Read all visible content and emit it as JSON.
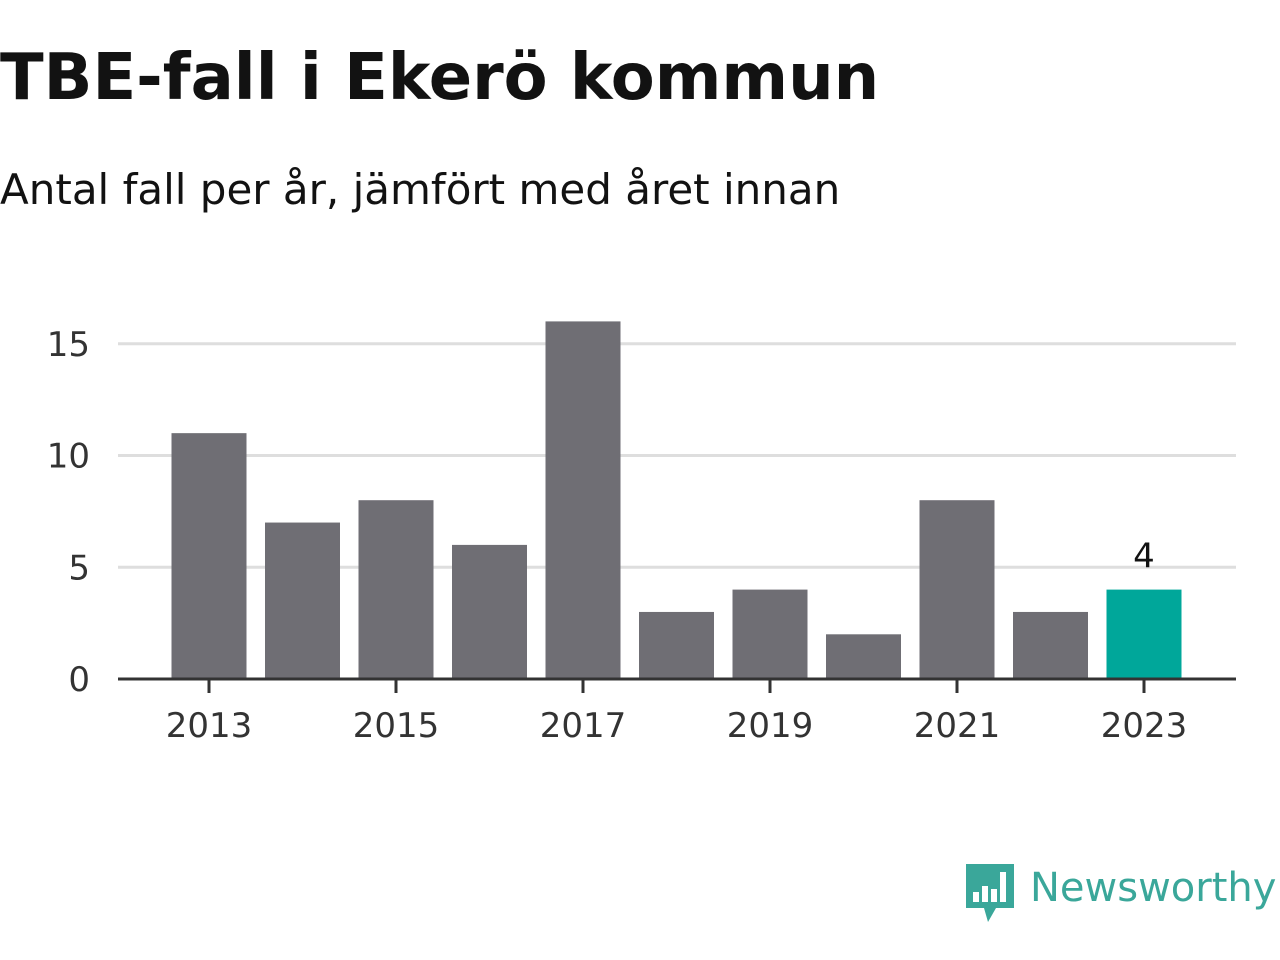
{
  "chart_data": {
    "type": "bar",
    "title": "TBE-fall i Ekerö kommun",
    "subtitle": "Antal fall per år, jämfört med året innan",
    "categories": [
      "2013",
      "2014",
      "2015",
      "2016",
      "2017",
      "2018",
      "2019",
      "2020",
      "2021",
      "2022",
      "2023"
    ],
    "values": [
      11,
      7,
      8,
      6,
      16,
      3,
      4,
      2,
      8,
      3,
      4
    ],
    "x_tick_labels": [
      "2013",
      "2015",
      "2017",
      "2019",
      "2021",
      "2023"
    ],
    "y_ticks": [
      0,
      5,
      10,
      15
    ],
    "ylim": [
      0,
      16
    ],
    "highlight": {
      "category": "2023",
      "value_label": "4"
    },
    "colors": {
      "bar": "#6f6e74",
      "highlight": "#00a79a",
      "grid": "#dedede",
      "axis": "#333333"
    },
    "grid": true,
    "xlabel": "",
    "ylabel": ""
  },
  "logo": {
    "icon": "newsworthy-chart-bubble-icon",
    "text": "Newsworthy",
    "color": "#3aa79a"
  }
}
